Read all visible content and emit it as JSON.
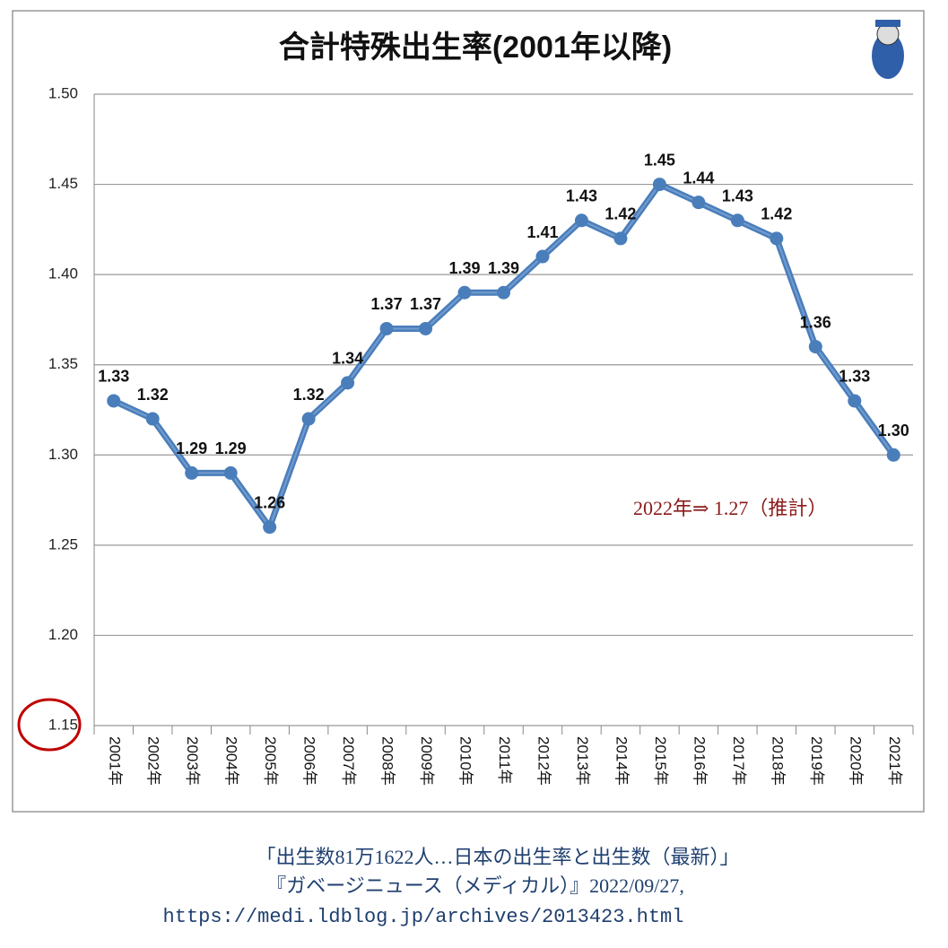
{
  "chart_data": {
    "type": "line",
    "title": "合計特殊出生率(2001年以降)",
    "categories": [
      "2001年",
      "2002年",
      "2003年",
      "2004年",
      "2005年",
      "2006年",
      "2007年",
      "2008年",
      "2009年",
      "2010年",
      "2011年",
      "2012年",
      "2013年",
      "2014年",
      "2015年",
      "2016年",
      "2017年",
      "2018年",
      "2019年",
      "2020年",
      "2021年"
    ],
    "values": [
      1.33,
      1.32,
      1.29,
      1.29,
      1.26,
      1.32,
      1.34,
      1.37,
      1.37,
      1.39,
      1.39,
      1.41,
      1.43,
      1.42,
      1.45,
      1.44,
      1.43,
      1.42,
      1.36,
      1.33,
      1.3
    ],
    "value_labels": [
      "1.33",
      "1.32",
      "1.29",
      "1.29",
      "1.26",
      "1.32",
      "1.34",
      "1.37",
      "1.37",
      "1.39",
      "1.39",
      "1.41",
      "1.43",
      "1.42",
      "1.45",
      "1.44",
      "1.43",
      "1.42",
      "1.36",
      "1.33",
      "1.30"
    ],
    "color": "#4a7ebb",
    "ylim": [
      1.15,
      1.5
    ],
    "yticks": [
      1.15,
      {
        "value": 1.2,
        "label": "1.20"
      },
      1.25,
      {
        "value": 1.3,
        "label": "1.30"
      },
      1.35,
      {
        "value": 1.4,
        "label": "1.40"
      },
      1.45,
      {
        "value": 1.5,
        "label": "1.50"
      }
    ],
    "grid": true,
    "annotation": "2022年⇒ 1.27（推計）"
  },
  "footer": {
    "lines": [
      "「出生数81万1622人…日本の出生率と出生数（最新）」",
      "『ガベージニュース（メディカル）』2022/09/27,",
      "https://medi.ldblog.jp/archives/2013423.html"
    ]
  }
}
